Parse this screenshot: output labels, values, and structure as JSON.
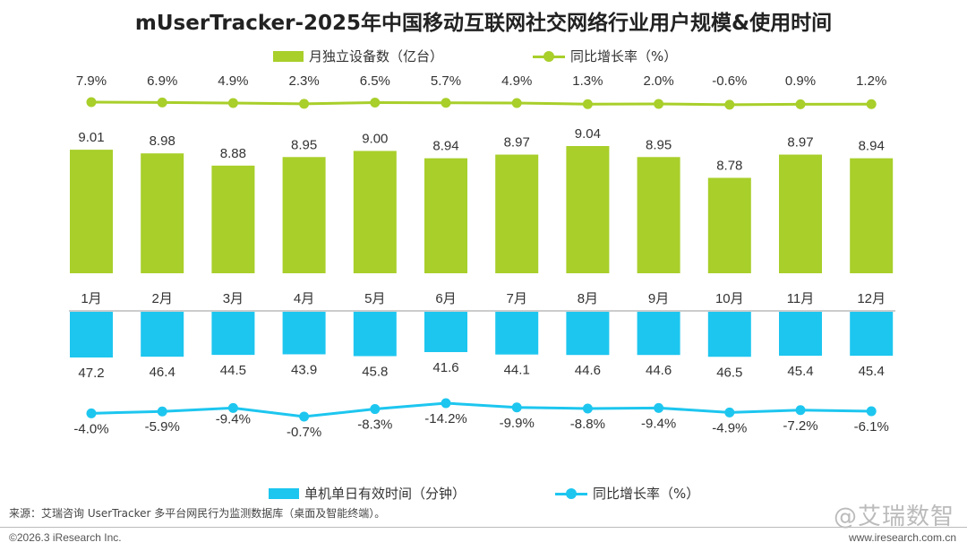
{
  "title": "mUserTracker-2025年中国移动互联网社交网络行业用户规模&使用时间",
  "colors": {
    "green": "#a8cf2a",
    "blue": "#1dc6ef",
    "text": "#333333"
  },
  "chart_data": [
    {
      "type": "bar+line",
      "categories": [
        "1月",
        "2月",
        "3月",
        "4月",
        "5月",
        "6月",
        "7月",
        "8月",
        "9月",
        "10月",
        "11月",
        "12月"
      ],
      "series": [
        {
          "name": "月独立设备数（亿台）",
          "kind": "bar",
          "values": [
            9.01,
            8.98,
            8.88,
            8.95,
            9.0,
            8.94,
            8.97,
            9.04,
            8.95,
            8.78,
            8.97,
            8.94
          ]
        },
        {
          "name": "同比增长率（%）",
          "kind": "line",
          "values": [
            7.9,
            6.9,
            4.9,
            2.3,
            6.5,
            5.7,
            4.9,
            1.3,
            2.0,
            -0.6,
            0.9,
            1.2
          ]
        }
      ]
    },
    {
      "type": "bar+line",
      "categories": [
        "1月",
        "2月",
        "3月",
        "4月",
        "5月",
        "6月",
        "7月",
        "8月",
        "9月",
        "10月",
        "11月",
        "12月"
      ],
      "series": [
        {
          "name": "单机单日有效时间（分钟）",
          "kind": "bar",
          "values": [
            47.2,
            46.4,
            44.5,
            43.9,
            45.8,
            41.6,
            44.1,
            44.6,
            44.6,
            46.5,
            45.4,
            45.4
          ]
        },
        {
          "name": "同比增长率（%）",
          "kind": "line",
          "values": [
            -4.0,
            -5.9,
            -9.4,
            -0.7,
            -8.3,
            -14.2,
            -9.9,
            -8.8,
            -9.4,
            -4.9,
            -7.2,
            -6.1
          ]
        }
      ]
    }
  ],
  "source": "来源：艾瑞咨询 UserTracker 多平台网民行为监测数据库（桌面及智能终端）。",
  "copyright": "©2026.3 iResearch Inc.",
  "website": "www.iresearch.com.cn",
  "watermark": "@艾瑞数智"
}
